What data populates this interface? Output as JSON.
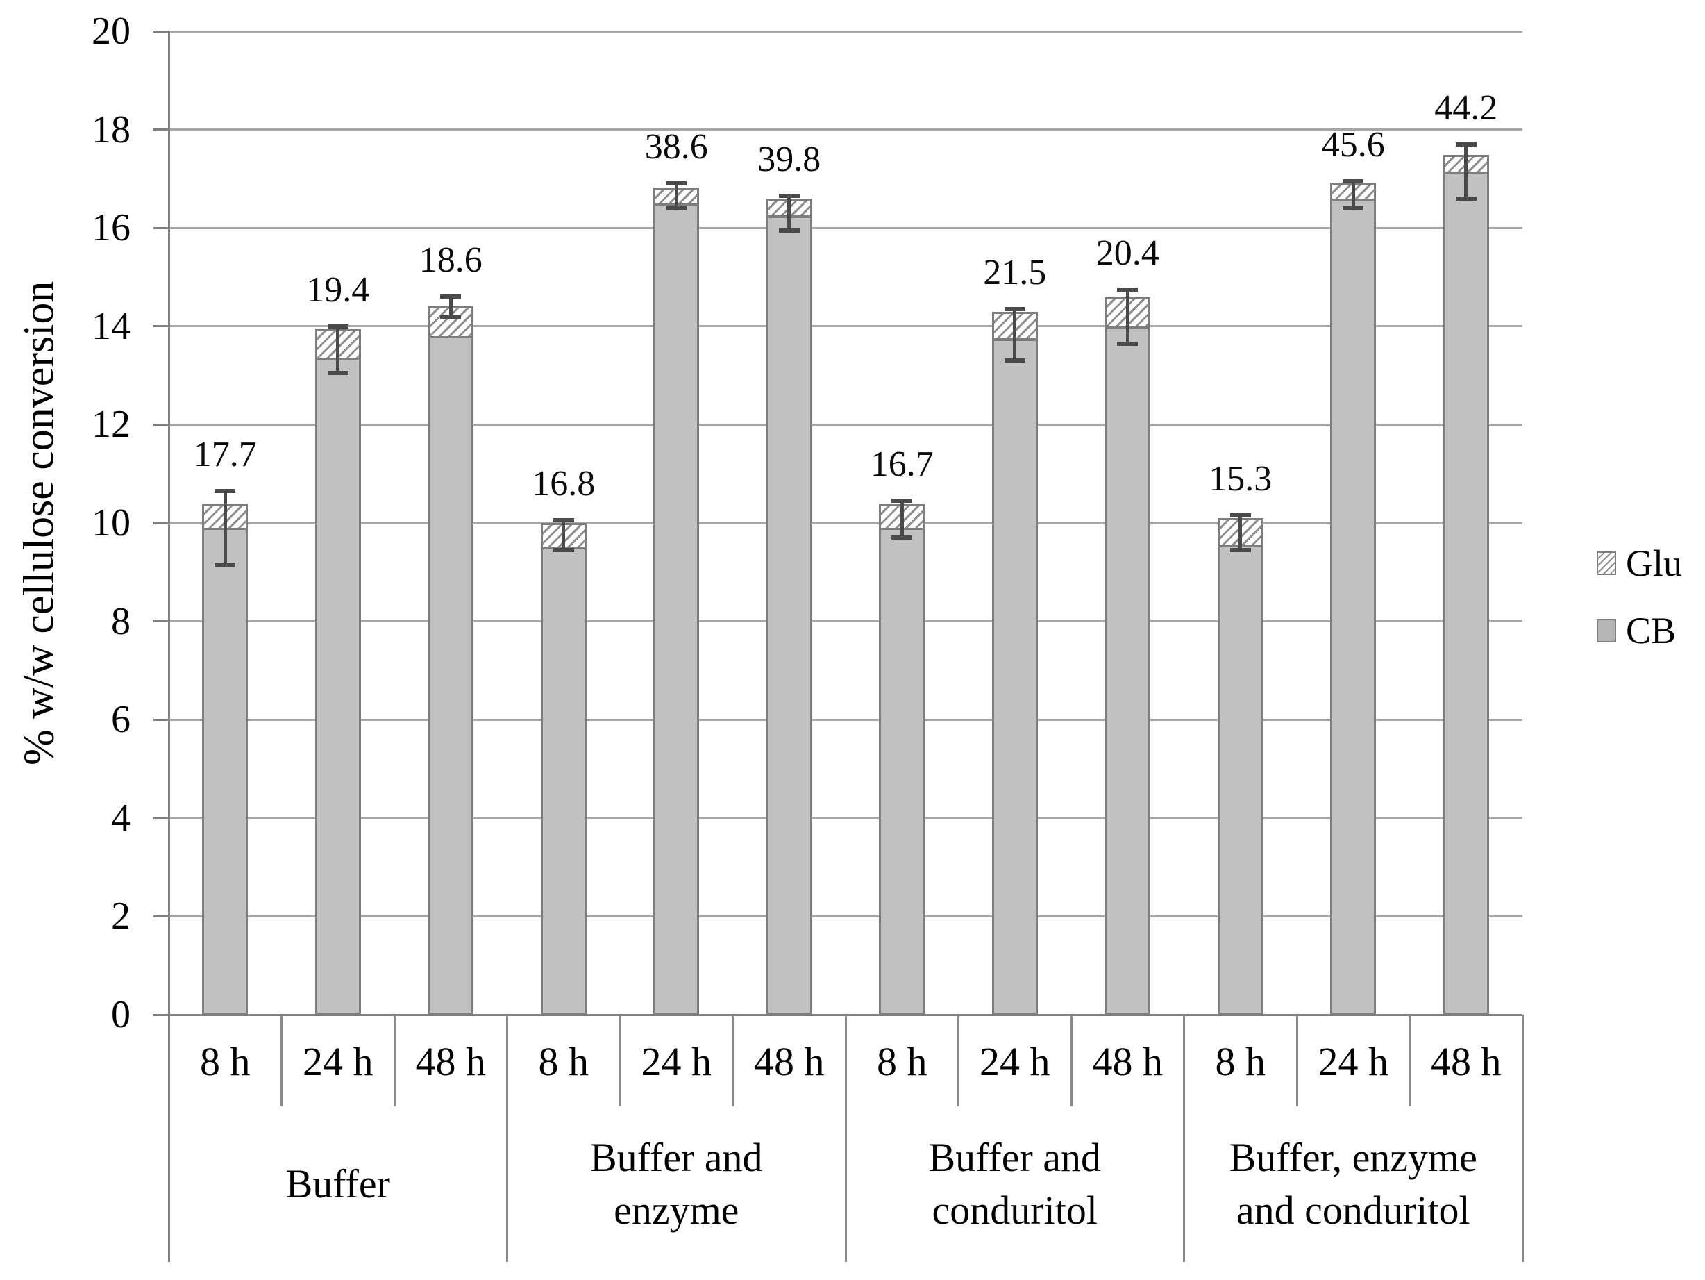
{
  "chart_data": {
    "type": "bar",
    "stacked": true,
    "title": "",
    "ylabel": "% w/w cellulose conversion",
    "xlabel": "",
    "ylim": [
      0,
      20
    ],
    "ytick_step": 2,
    "yticks": [
      0,
      2,
      4,
      6,
      8,
      10,
      12,
      14,
      16,
      18,
      20
    ],
    "grid": true,
    "legend": {
      "position": "right",
      "entries": [
        {
          "label": "Glu",
          "pattern": "hatch"
        },
        {
          "label": "CB",
          "pattern": "solid"
        }
      ]
    },
    "series_order_bottom_to_top": [
      "CB",
      "Glu"
    ],
    "groups": [
      {
        "label": "Buffer",
        "label_lines": [
          "Buffer"
        ],
        "bars": [
          {
            "time": "8 h",
            "CB": 9.9,
            "Glu": 0.5,
            "total": 10.4,
            "err_low": 9.15,
            "err_high": 10.65,
            "value_label": "17.7"
          },
          {
            "time": "24 h",
            "CB": 13.35,
            "Glu": 0.6,
            "total": 13.95,
            "err_low": 13.05,
            "err_high": 14.0,
            "value_label": "19.4"
          },
          {
            "time": "48 h",
            "CB": 13.8,
            "Glu": 0.6,
            "total": 14.4,
            "err_low": 14.2,
            "err_high": 14.6,
            "value_label": "18.6"
          }
        ]
      },
      {
        "label": "Buffer and enzyme",
        "label_lines": [
          "Buffer and",
          "enzyme"
        ],
        "bars": [
          {
            "time": "8 h",
            "CB": 9.5,
            "Glu": 0.5,
            "total": 10.0,
            "err_low": 9.45,
            "err_high": 10.05,
            "value_label": "16.8"
          },
          {
            "time": "24 h",
            "CB": 16.5,
            "Glu": 0.32,
            "total": 16.82,
            "err_low": 16.4,
            "err_high": 16.9,
            "value_label": "38.6"
          },
          {
            "time": "48 h",
            "CB": 16.25,
            "Glu": 0.35,
            "total": 16.6,
            "err_low": 15.95,
            "err_high": 16.65,
            "value_label": "39.8"
          }
        ]
      },
      {
        "label": "Buffer and conduritol",
        "label_lines": [
          "Buffer and",
          "conduritol"
        ],
        "bars": [
          {
            "time": "8 h",
            "CB": 9.9,
            "Glu": 0.5,
            "total": 10.4,
            "err_low": 9.7,
            "err_high": 10.45,
            "value_label": "16.7"
          },
          {
            "time": "24 h",
            "CB": 13.75,
            "Glu": 0.55,
            "total": 14.3,
            "err_low": 13.3,
            "err_high": 14.35,
            "value_label": "21.5"
          },
          {
            "time": "48 h",
            "CB": 14.0,
            "Glu": 0.6,
            "total": 14.6,
            "err_low": 13.65,
            "err_high": 14.75,
            "value_label": "20.4"
          }
        ]
      },
      {
        "label": "Buffer, enzyme and conduritol",
        "label_lines": [
          "Buffer, enzyme",
          "and conduritol"
        ],
        "bars": [
          {
            "time": "8 h",
            "CB": 9.55,
            "Glu": 0.55,
            "total": 10.1,
            "err_low": 9.45,
            "err_high": 10.15,
            "value_label": "15.3"
          },
          {
            "time": "24 h",
            "CB": 16.6,
            "Glu": 0.32,
            "total": 16.92,
            "err_low": 16.4,
            "err_high": 16.95,
            "value_label": "45.6"
          },
          {
            "time": "48 h",
            "CB": 17.15,
            "Glu": 0.33,
            "total": 17.48,
            "err_low": 16.6,
            "err_high": 17.7,
            "value_label": "44.2"
          }
        ]
      }
    ],
    "colors": {
      "cb_fill": "#c1c1c1",
      "bar_border": "#7d7d7d",
      "hatch_line": "#8f8f8f",
      "hatch_bg": "#ffffff",
      "gridline": "#a6a6a6",
      "axis": "#7f7f7f",
      "error_bar": "#4a4a4a",
      "text": "#000000"
    }
  }
}
